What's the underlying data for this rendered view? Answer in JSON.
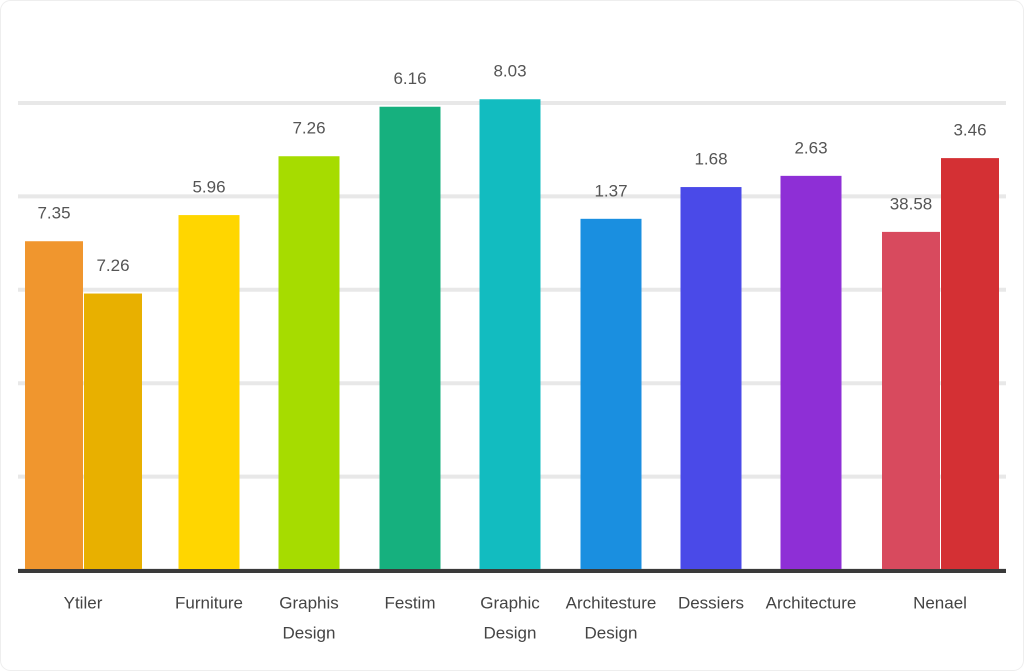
{
  "chart_data": {
    "type": "bar",
    "categories": [
      [
        "Ytiler"
      ],
      [
        "Furniture"
      ],
      [
        "Graphis",
        "Design"
      ],
      [
        "Festim"
      ],
      [
        "Graphic",
        "Design"
      ],
      [
        "Architesture",
        "Design"
      ],
      [
        "Dessiers"
      ],
      [
        "Architecture"
      ],
      [
        "Nenael"
      ]
    ],
    "series": [
      {
        "values": [
          3.52,
          3.8,
          4.43,
          4.96,
          5.04,
          3.76,
          4.1,
          4.22,
          3.62
        ],
        "colors": [
          "#f0962e",
          "#ffd600",
          "#a6dc00",
          "#16b07e",
          "#12bcc0",
          "#1a8fe0",
          "#4a4ae8",
          "#8e2fd6",
          "#d84a5e"
        ],
        "bar_labels": [
          "7.35",
          "5.96",
          "7.26",
          "6.16",
          "8.03",
          "1.37",
          "1.68",
          "2.63",
          "38.58"
        ]
      },
      {
        "values": [
          2.96,
          null,
          null,
          null,
          null,
          null,
          null,
          null,
          4.41
        ],
        "colors": [
          "#e8b000",
          null,
          null,
          null,
          null,
          null,
          null,
          null,
          "#d43034"
        ],
        "bar_labels": [
          "7.26",
          null,
          null,
          null,
          null,
          null,
          null,
          null,
          "3.46"
        ]
      }
    ],
    "ylim": [
      0,
      5
    ],
    "yticks": [
      0,
      1,
      2,
      3,
      4,
      5
    ],
    "grid": true
  }
}
